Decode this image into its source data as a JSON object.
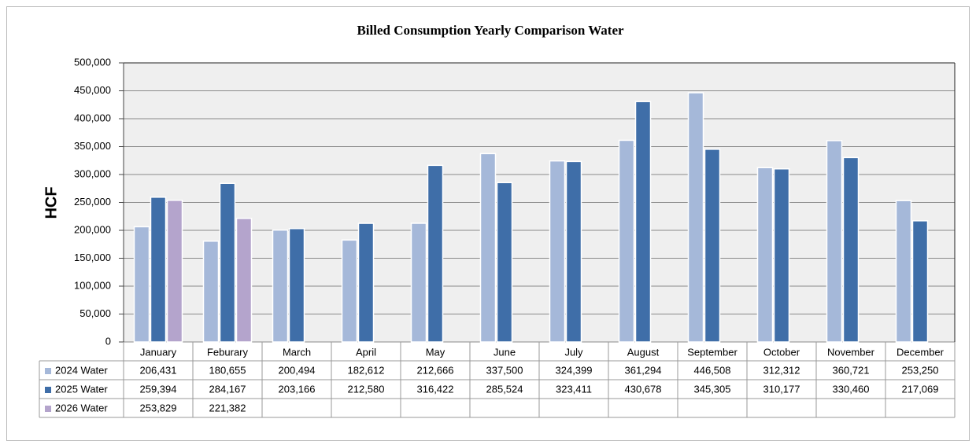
{
  "chart_data": {
    "type": "bar",
    "title": "Billed Consumption Yearly Comparison Water",
    "y_label": "HCF",
    "categories": [
      "January",
      "Feburary",
      "March",
      "April",
      "May",
      "June",
      "July",
      "August",
      "September",
      "October",
      "November",
      "December"
    ],
    "series": [
      {
        "name": "2024 Water",
        "color": "#a5b8d9",
        "values": [
          206431,
          180655,
          200494,
          182612,
          212666,
          337500,
          324399,
          361294,
          446508,
          312312,
          360721,
          253250
        ],
        "value_labels": [
          "206,431",
          "180,655",
          "200,494",
          "182,612",
          "212,666",
          "337,500",
          "324,399",
          "361,294",
          "446,508",
          "312,312",
          "360,721",
          "253,250"
        ]
      },
      {
        "name": "2025 Water",
        "color": "#3f6ea8",
        "values": [
          259394,
          284167,
          203166,
          212580,
          316422,
          285524,
          323411,
          430678,
          345305,
          310177,
          330460,
          217069
        ],
        "value_labels": [
          "259,394",
          "284,167",
          "203,166",
          "212,580",
          "316,422",
          "285,524",
          "323,411",
          "430,678",
          "345,305",
          "310,177",
          "330,460",
          "217,069"
        ]
      },
      {
        "name": "2026 Water",
        "color": "#b4a4cc",
        "values": [
          253829,
          221382,
          null,
          null,
          null,
          null,
          null,
          null,
          null,
          null,
          null,
          null
        ],
        "value_labels": [
          "253,829",
          "221,382",
          null,
          null,
          null,
          null,
          null,
          null,
          null,
          null,
          null,
          null
        ]
      }
    ],
    "ylim": [
      0,
      500000
    ],
    "yticks": [
      0,
      {
        "value": 50000,
        "label": "50,000"
      },
      {
        "value": 100000,
        "label": "100,000"
      },
      {
        "value": 150000,
        "label": "150,000"
      },
      {
        "value": 200000,
        "label": "200,000"
      },
      {
        "value": 250000,
        "label": "250,000"
      },
      {
        "value": 300000,
        "label": "300,000"
      },
      {
        "value": 350000,
        "label": "350,000"
      },
      {
        "value": 400000,
        "label": "400,000"
      },
      {
        "value": 450000,
        "label": "450,000"
      },
      {
        "value": 500000,
        "label": "500,000"
      }
    ],
    "grid": true,
    "data_table": true
  }
}
